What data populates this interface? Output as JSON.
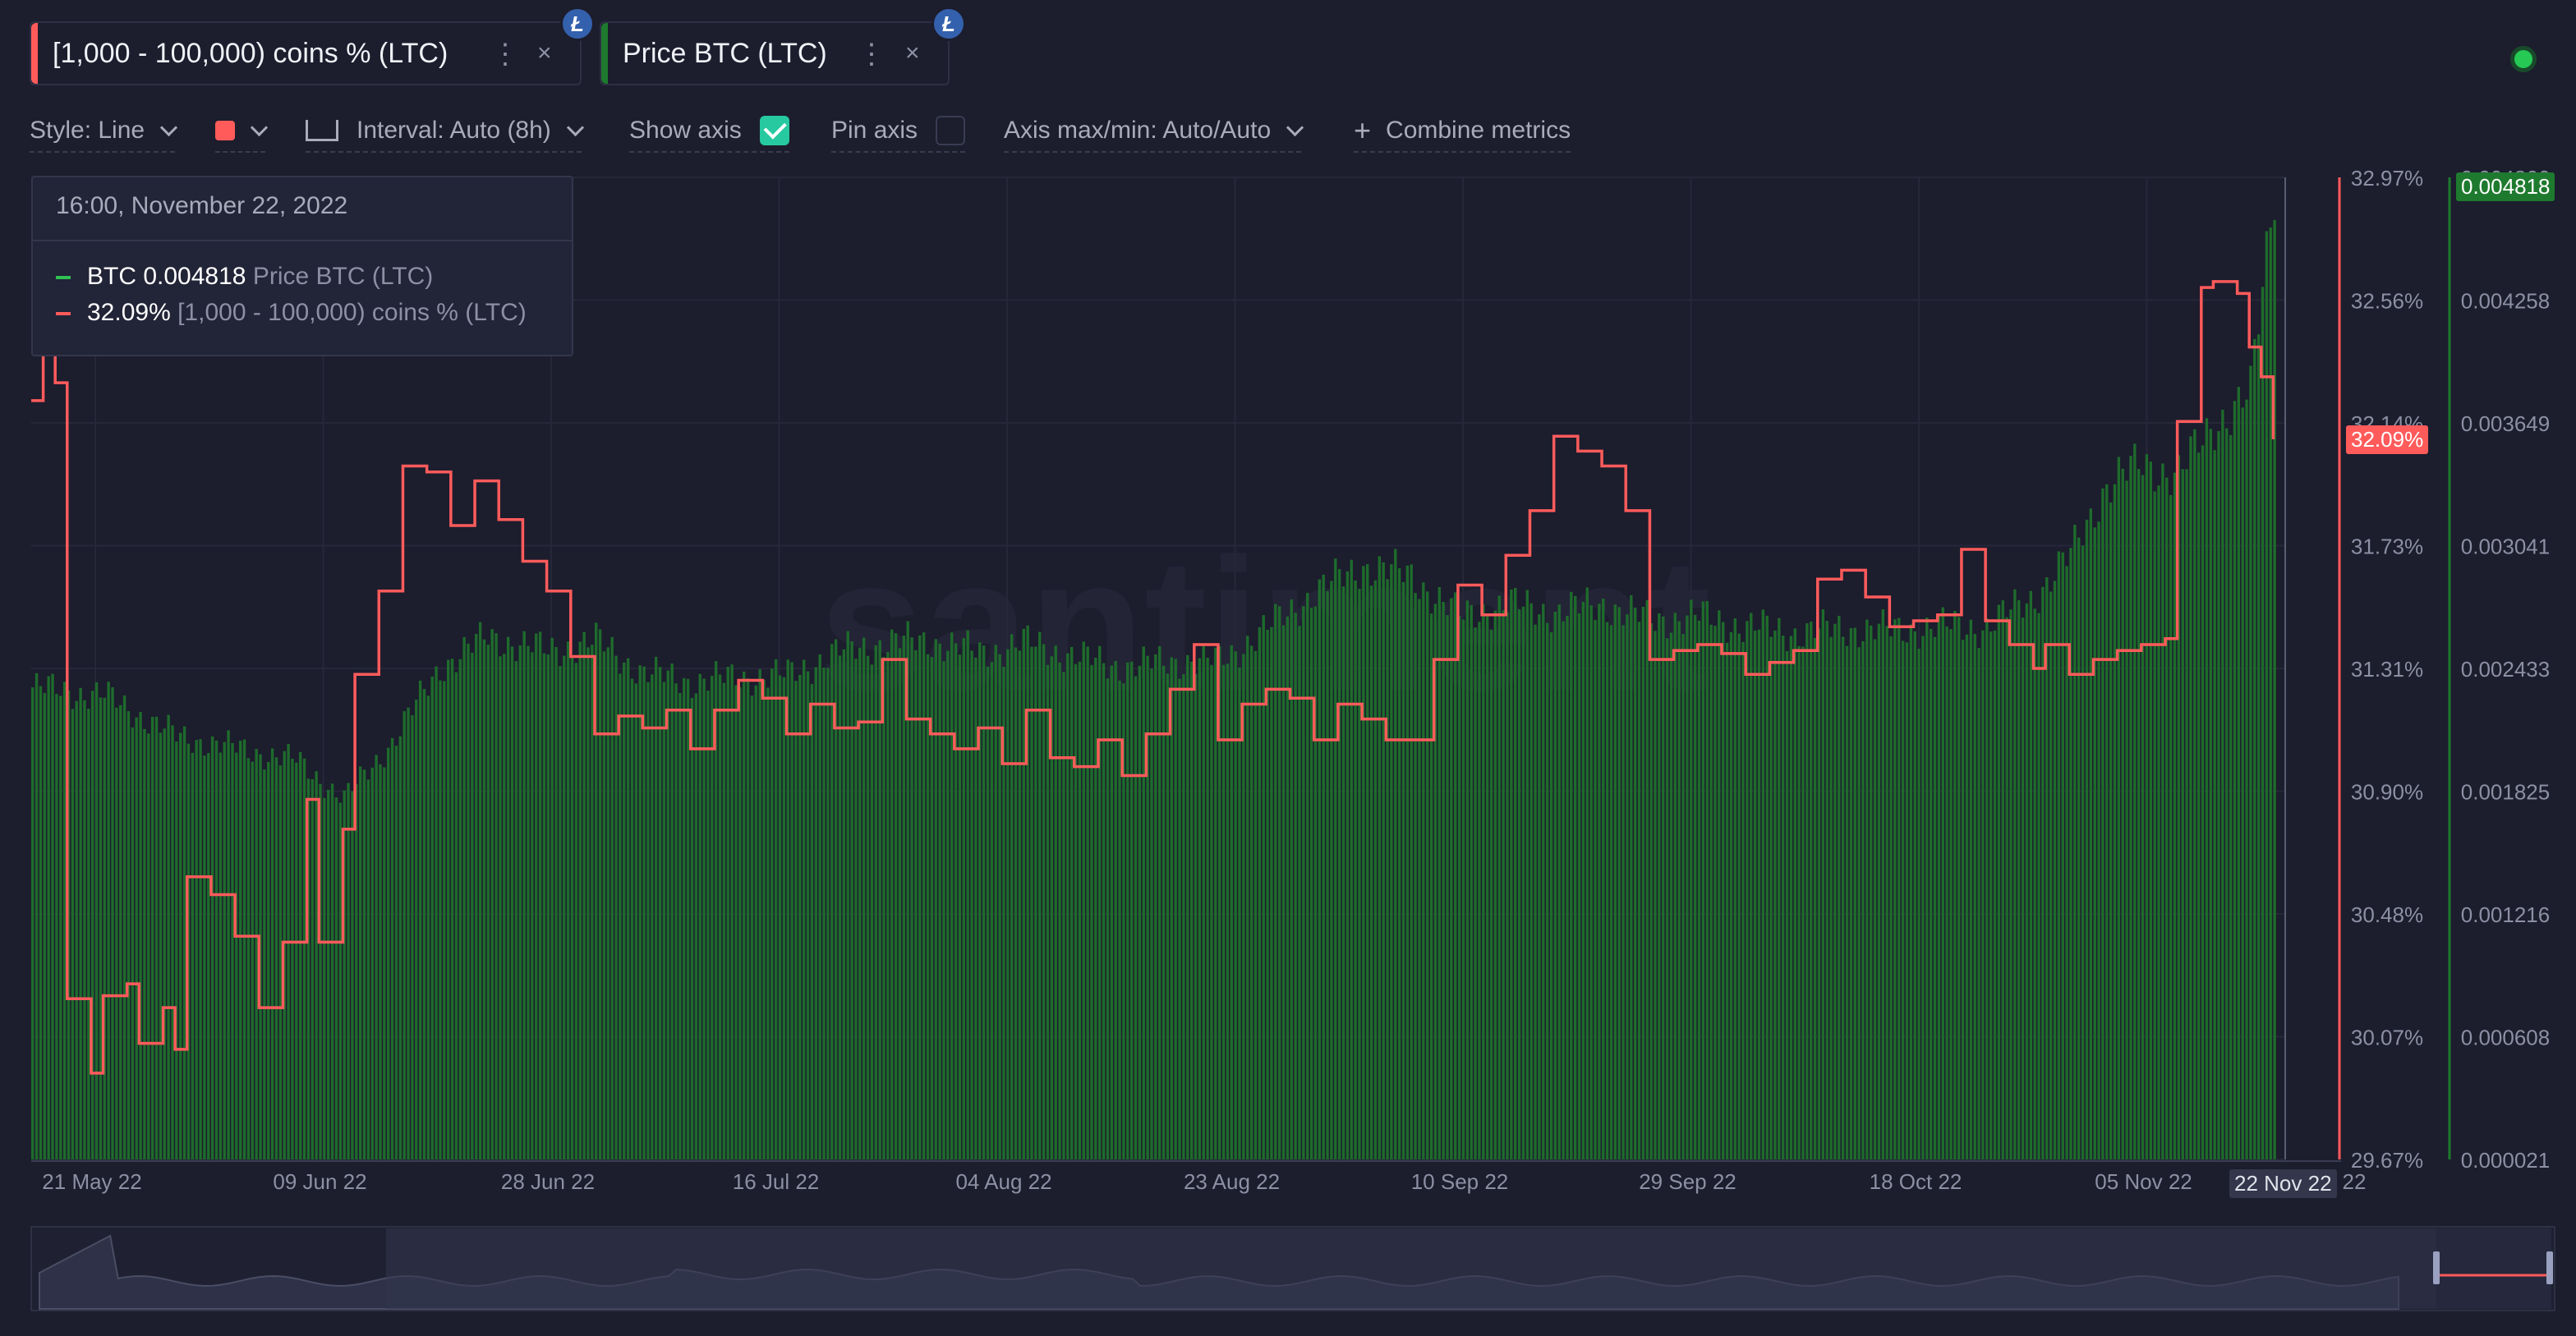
{
  "tabs": [
    {
      "label": "[1,000 - 100,000) coins % (LTC)",
      "color": "#ff5b5b",
      "asset_icon": "litecoin-icon",
      "asset_glyph": "Ł"
    },
    {
      "label": "Price BTC (LTC)",
      "color": "#1e7a2e",
      "asset_icon": "litecoin-icon",
      "asset_glyph": "Ł"
    }
  ],
  "menu_glyph": "⋮",
  "close_glyph": "×",
  "settings": {
    "style": "Style: Line",
    "interval": "Interval: Auto (8h)",
    "show_axis": "Show axis",
    "show_axis_checked": true,
    "pin_axis": "Pin axis",
    "pin_axis_checked": false,
    "axis_maxmin": "Axis max/min: Auto/Auto",
    "combine": "Combine metrics",
    "color": "#ff5b5b"
  },
  "tooltip": {
    "date": "16:00, November 22, 2022",
    "rows": [
      {
        "value": "BTC 0.004818",
        "name": "Price BTC (LTC)",
        "color": "#2ec153"
      },
      {
        "value": "32.09%",
        "name": "[1,000 - 100,000) coins % (LTC)",
        "color": "#ff5b5b"
      }
    ]
  },
  "watermark": "santiment",
  "colors": {
    "background": "#1c1d2d",
    "red_series": "#ff5b5b",
    "green_series": "#1e6b2c",
    "status": "#26c953"
  },
  "chart_data": {
    "type": "line",
    "x_ticks": [
      "21 May 22",
      "09 Jun 22",
      "28 Jun 22",
      "16 Jul 22",
      "04 Aug 22",
      "23 Aug 22",
      "10 Sep 22",
      "29 Sep 22",
      "18 Oct 22",
      "05 Nov 22",
      "22"
    ],
    "cursor_label": "22 Nov 22",
    "y_left_ticks": [
      "32.97%",
      "32.56%",
      "32.14%",
      "31.73%",
      "31.31%",
      "30.90%",
      "30.48%",
      "30.07%",
      "29.67%"
    ],
    "y_left_range": [
      29.67,
      32.97
    ],
    "y_left_current": "32.09%",
    "y_right_ticks": [
      "0.004866",
      "0.004258",
      "0.003649",
      "0.003041",
      "0.002433",
      "0.001825",
      "0.001216",
      "0.000608",
      "0.000021"
    ],
    "y_right_range": [
      2.1e-05,
      0.004866
    ],
    "y_right_current": "0.004818",
    "x_range": [
      "2022-05-19",
      "2022-11-23"
    ],
    "series": [
      {
        "name": "[1,000 - 100,000) coins % (LTC)",
        "style": "line",
        "axis": "left",
        "color": "#ff5b5b",
        "points": [
          [
            "2022-05-19",
            32.22
          ],
          [
            "2022-05-20",
            32.5
          ],
          [
            "2022-05-21",
            32.28
          ],
          [
            "2022-05-22",
            30.21
          ],
          [
            "2022-05-24",
            29.96
          ],
          [
            "2022-05-25",
            30.22
          ],
          [
            "2022-05-27",
            30.26
          ],
          [
            "2022-05-28",
            30.06
          ],
          [
            "2022-05-30",
            30.18
          ],
          [
            "2022-05-31",
            30.04
          ],
          [
            "2022-06-01",
            30.62
          ],
          [
            "2022-06-03",
            30.56
          ],
          [
            "2022-06-05",
            30.42
          ],
          [
            "2022-06-07",
            30.18
          ],
          [
            "2022-06-09",
            30.4
          ],
          [
            "2022-06-11",
            30.88
          ],
          [
            "2022-06-12",
            30.4
          ],
          [
            "2022-06-14",
            30.78
          ],
          [
            "2022-06-15",
            31.3
          ],
          [
            "2022-06-17",
            31.58
          ],
          [
            "2022-06-19",
            32.0
          ],
          [
            "2022-06-21",
            31.98
          ],
          [
            "2022-06-23",
            31.8
          ],
          [
            "2022-06-25",
            31.95
          ],
          [
            "2022-06-27",
            31.82
          ],
          [
            "2022-06-29",
            31.68
          ],
          [
            "2022-07-01",
            31.58
          ],
          [
            "2022-07-03",
            31.36
          ],
          [
            "2022-07-05",
            31.1
          ],
          [
            "2022-07-07",
            31.16
          ],
          [
            "2022-07-09",
            31.12
          ],
          [
            "2022-07-11",
            31.18
          ],
          [
            "2022-07-13",
            31.05
          ],
          [
            "2022-07-15",
            31.18
          ],
          [
            "2022-07-17",
            31.28
          ],
          [
            "2022-07-19",
            31.22
          ],
          [
            "2022-07-21",
            31.1
          ],
          [
            "2022-07-23",
            31.2
          ],
          [
            "2022-07-25",
            31.12
          ],
          [
            "2022-07-27",
            31.14
          ],
          [
            "2022-07-29",
            31.35
          ],
          [
            "2022-07-31",
            31.15
          ],
          [
            "2022-08-02",
            31.1
          ],
          [
            "2022-08-04",
            31.05
          ],
          [
            "2022-08-06",
            31.12
          ],
          [
            "2022-08-08",
            31.0
          ],
          [
            "2022-08-10",
            31.18
          ],
          [
            "2022-08-12",
            31.02
          ],
          [
            "2022-08-14",
            30.99
          ],
          [
            "2022-08-16",
            31.08
          ],
          [
            "2022-08-18",
            30.96
          ],
          [
            "2022-08-20",
            31.1
          ],
          [
            "2022-08-22",
            31.25
          ],
          [
            "2022-08-24",
            31.4
          ],
          [
            "2022-08-26",
            31.08
          ],
          [
            "2022-08-28",
            31.2
          ],
          [
            "2022-08-30",
            31.25
          ],
          [
            "2022-09-01",
            31.22
          ],
          [
            "2022-09-03",
            31.08
          ],
          [
            "2022-09-05",
            31.2
          ],
          [
            "2022-09-07",
            31.15
          ],
          [
            "2022-09-09",
            31.08
          ],
          [
            "2022-09-11",
            31.08
          ],
          [
            "2022-09-13",
            31.35
          ],
          [
            "2022-09-15",
            31.6
          ],
          [
            "2022-09-17",
            31.5
          ],
          [
            "2022-09-19",
            31.7
          ],
          [
            "2022-09-21",
            31.85
          ],
          [
            "2022-09-23",
            32.1
          ],
          [
            "2022-09-25",
            32.05
          ],
          [
            "2022-09-27",
            32.0
          ],
          [
            "2022-09-29",
            31.85
          ],
          [
            "2022-10-01",
            31.35
          ],
          [
            "2022-10-03",
            31.38
          ],
          [
            "2022-10-05",
            31.4
          ],
          [
            "2022-10-07",
            31.37
          ],
          [
            "2022-10-09",
            31.3
          ],
          [
            "2022-10-11",
            31.34
          ],
          [
            "2022-10-13",
            31.38
          ],
          [
            "2022-10-15",
            31.62
          ],
          [
            "2022-10-17",
            31.65
          ],
          [
            "2022-10-19",
            31.56
          ],
          [
            "2022-10-21",
            31.46
          ],
          [
            "2022-10-23",
            31.48
          ],
          [
            "2022-10-25",
            31.5
          ],
          [
            "2022-10-27",
            31.72
          ],
          [
            "2022-10-29",
            31.48
          ],
          [
            "2022-10-31",
            31.4
          ],
          [
            "2022-11-02",
            31.32
          ],
          [
            "2022-11-03",
            31.4
          ],
          [
            "2022-11-05",
            31.3
          ],
          [
            "2022-11-07",
            31.35
          ],
          [
            "2022-11-09",
            31.38
          ],
          [
            "2022-11-11",
            31.4
          ],
          [
            "2022-11-13",
            31.42
          ],
          [
            "2022-11-14",
            32.15
          ],
          [
            "2022-11-16",
            32.6
          ],
          [
            "2022-11-17",
            32.62
          ],
          [
            "2022-11-19",
            32.58
          ],
          [
            "2022-11-20",
            32.4
          ],
          [
            "2022-11-21",
            32.3
          ],
          [
            "2022-11-22",
            32.09
          ]
        ]
      },
      {
        "name": "Price BTC (LTC)",
        "style": "bars",
        "axis": "right",
        "color": "#1e6b2c",
        "points": [
          [
            "2022-05-19",
            0.00235
          ],
          [
            "2022-05-25",
            0.00231
          ],
          [
            "2022-05-31",
            0.00211
          ],
          [
            "2022-06-05",
            0.00205
          ],
          [
            "2022-06-10",
            0.00199
          ],
          [
            "2022-06-14",
            0.0018
          ],
          [
            "2022-06-18",
            0.00208
          ],
          [
            "2022-06-22",
            0.00245
          ],
          [
            "2022-06-26",
            0.0026
          ],
          [
            "2022-07-01",
            0.00253
          ],
          [
            "2022-07-05",
            0.00258
          ],
          [
            "2022-07-09",
            0.00242
          ],
          [
            "2022-07-13",
            0.00238
          ],
          [
            "2022-07-17",
            0.0024
          ],
          [
            "2022-07-21",
            0.00241
          ],
          [
            "2022-07-25",
            0.00252
          ],
          [
            "2022-07-29",
            0.00257
          ],
          [
            "2022-08-02",
            0.00258
          ],
          [
            "2022-08-06",
            0.00252
          ],
          [
            "2022-08-10",
            0.00257
          ],
          [
            "2022-08-14",
            0.0025
          ],
          [
            "2022-08-18",
            0.00245
          ],
          [
            "2022-08-22",
            0.00248
          ],
          [
            "2022-08-26",
            0.00248
          ],
          [
            "2022-08-30",
            0.00264
          ],
          [
            "2022-09-03",
            0.00282
          ],
          [
            "2022-09-07",
            0.00295
          ],
          [
            "2022-09-11",
            0.0029
          ],
          [
            "2022-09-15",
            0.0027
          ],
          [
            "2022-09-19",
            0.00276
          ],
          [
            "2022-09-23",
            0.00272
          ],
          [
            "2022-09-27",
            0.00276
          ],
          [
            "2022-10-01",
            0.00268
          ],
          [
            "2022-10-05",
            0.0027
          ],
          [
            "2022-10-09",
            0.00265
          ],
          [
            "2022-10-13",
            0.00262
          ],
          [
            "2022-10-17",
            0.00264
          ],
          [
            "2022-10-21",
            0.00263
          ],
          [
            "2022-10-25",
            0.00265
          ],
          [
            "2022-10-29",
            0.00265
          ],
          [
            "2022-11-02",
            0.0028
          ],
          [
            "2022-11-05",
            0.003
          ],
          [
            "2022-11-08",
            0.00335
          ],
          [
            "2022-11-11",
            0.00345
          ],
          [
            "2022-11-14",
            0.0034
          ],
          [
            "2022-11-17",
            0.00365
          ],
          [
            "2022-11-20",
            0.0038
          ],
          [
            "2022-11-22",
            0.004818
          ]
        ]
      }
    ],
    "grid": true
  }
}
